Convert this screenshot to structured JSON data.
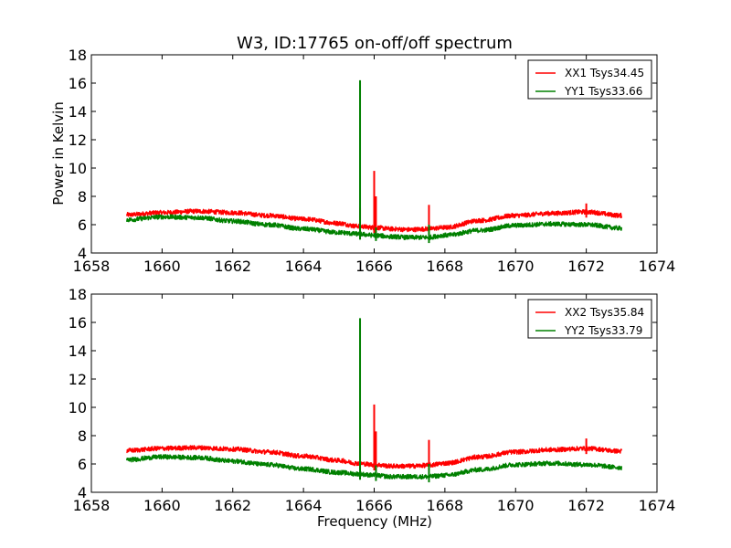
{
  "chart_data": [
    {
      "type": "line",
      "title": "W3, ID:17765 on-off/off spectrum",
      "xlabel": "",
      "ylabel": "Power in Kelvin",
      "xlim": [
        1658,
        1674
      ],
      "ylim": [
        4,
        18
      ],
      "xticks": [
        1658,
        1660,
        1662,
        1664,
        1666,
        1668,
        1670,
        1672,
        1674
      ],
      "yticks": [
        4,
        6,
        8,
        10,
        12,
        14,
        16,
        18
      ],
      "legend_position": "top-right",
      "grid": false,
      "series": [
        {
          "name": "XX1 Tsys34.45",
          "color": "#ff0000",
          "x": [
            1659.0,
            1660.0,
            1661.0,
            1662.0,
            1663.0,
            1664.0,
            1665.0,
            1665.5,
            1666.0,
            1666.5,
            1667.0,
            1667.5,
            1668.0,
            1669.0,
            1670.0,
            1671.0,
            1672.0,
            1673.0
          ],
          "y": [
            6.7,
            6.85,
            6.95,
            6.85,
            6.65,
            6.4,
            6.1,
            5.9,
            5.8,
            5.7,
            5.65,
            5.7,
            5.8,
            6.3,
            6.65,
            6.8,
            6.9,
            6.65
          ],
          "spikes": [
            {
              "x": 1665.6,
              "y": 7.2
            },
            {
              "x": 1666.0,
              "y": 9.8
            },
            {
              "x": 1666.05,
              "y": 8.0
            },
            {
              "x": 1667.55,
              "y": 7.4
            },
            {
              "x": 1672.0,
              "y": 7.5
            }
          ]
        },
        {
          "name": "YY1 Tsys33.66",
          "color": "#008000",
          "x": [
            1659.0,
            1660.0,
            1661.0,
            1662.0,
            1663.0,
            1664.0,
            1665.0,
            1665.5,
            1666.0,
            1666.5,
            1667.0,
            1667.5,
            1668.0,
            1669.0,
            1670.0,
            1671.0,
            1672.0,
            1673.0
          ],
          "y": [
            6.35,
            6.55,
            6.5,
            6.25,
            6.0,
            5.7,
            5.45,
            5.35,
            5.25,
            5.15,
            5.1,
            5.1,
            5.25,
            5.6,
            5.95,
            6.05,
            6.0,
            5.75
          ],
          "spikes": [
            {
              "x": 1665.6,
              "y": 16.2
            },
            {
              "x": 1666.05,
              "y": 5.8
            },
            {
              "x": 1667.55,
              "y": 6.0
            }
          ]
        }
      ]
    },
    {
      "type": "line",
      "title": "",
      "xlabel": "Frequency (MHz)",
      "ylabel": "",
      "xlim": [
        1658,
        1674
      ],
      "ylim": [
        4,
        18
      ],
      "xticks": [
        1658,
        1660,
        1662,
        1664,
        1666,
        1668,
        1670,
        1672,
        1674
      ],
      "yticks": [
        4,
        6,
        8,
        10,
        12,
        14,
        16,
        18
      ],
      "legend_position": "top-right",
      "grid": false,
      "series": [
        {
          "name": "XX2 Tsys35.84",
          "color": "#ff0000",
          "x": [
            1659.0,
            1660.0,
            1661.0,
            1662.0,
            1663.0,
            1664.0,
            1665.0,
            1665.5,
            1666.0,
            1666.5,
            1667.0,
            1667.5,
            1668.0,
            1669.0,
            1670.0,
            1671.0,
            1672.0,
            1673.0
          ],
          "y": [
            6.95,
            7.1,
            7.15,
            7.05,
            6.85,
            6.55,
            6.25,
            6.05,
            5.95,
            5.85,
            5.85,
            5.9,
            6.05,
            6.5,
            6.85,
            7.0,
            7.1,
            6.9
          ],
          "spikes": [
            {
              "x": 1665.6,
              "y": 7.5
            },
            {
              "x": 1666.0,
              "y": 10.2
            },
            {
              "x": 1666.05,
              "y": 8.3
            },
            {
              "x": 1667.55,
              "y": 7.7
            },
            {
              "x": 1672.0,
              "y": 7.8
            }
          ]
        },
        {
          "name": "YY2 Tsys33.79",
          "color": "#008000",
          "x": [
            1659.0,
            1660.0,
            1661.0,
            1662.0,
            1663.0,
            1664.0,
            1665.0,
            1665.5,
            1666.0,
            1666.5,
            1667.0,
            1667.5,
            1668.0,
            1669.0,
            1670.0,
            1671.0,
            1672.0,
            1673.0
          ],
          "y": [
            6.3,
            6.5,
            6.45,
            6.2,
            5.95,
            5.65,
            5.4,
            5.3,
            5.2,
            5.1,
            5.1,
            5.1,
            5.2,
            5.6,
            5.95,
            6.05,
            5.95,
            5.75
          ],
          "spikes": [
            {
              "x": 1665.6,
              "y": 16.3
            },
            {
              "x": 1666.05,
              "y": 5.9
            },
            {
              "x": 1667.55,
              "y": 6.0
            }
          ]
        }
      ]
    }
  ]
}
